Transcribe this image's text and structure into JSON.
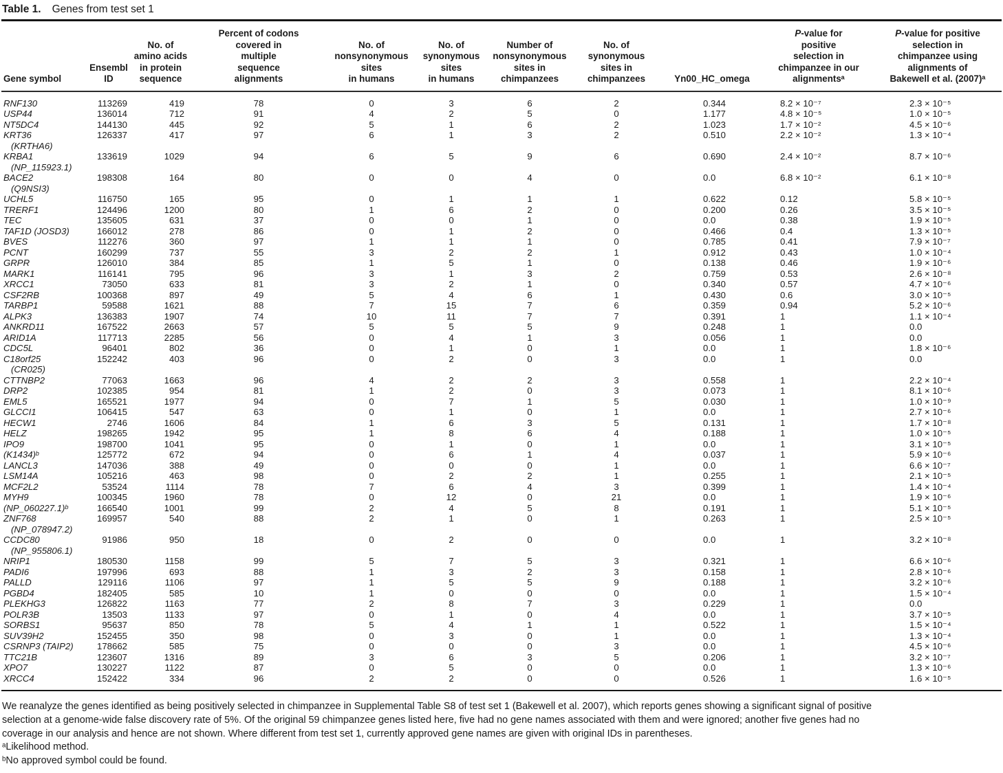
{
  "title": {
    "label": "Table 1.",
    "text": "Genes from test set 1"
  },
  "colors": {
    "background": "#ffffff",
    "text": "#1b1b1b",
    "rule": "#161616"
  },
  "columns": [
    "Gene symbol",
    "Ensembl\nID",
    "No. of\namino acids\nin protein\nsequence",
    "Percent of codons\ncovered in\nmultiple\nsequence\nalignments",
    "No. of\nnonsynonymous\nsites\nin humans",
    "No. of\nsynonymous\nsites\nin humans",
    "Number of\nnonsynonymous\nsites in\nchimpanzees",
    "No. of\nsynonymous\nsites in\nchimpanzees",
    "Yn00_HC_omega",
    "P-value for\npositive\nselection in\nchimpanzee in our\nalignmentsᵃ",
    "P-value for positive\nselection in\nchimpanzee using\nalignments of\nBakewell et al. (2007)ᵃ"
  ],
  "rows": [
    {
      "gene": "RNF130",
      "alt": "",
      "ensembl": "113269",
      "aa": "419",
      "pct": "78",
      "nsh": "0",
      "ssh": "3",
      "nsc": "6",
      "ssc": "2",
      "omega": "0.344",
      "p1": "8.2 × 10⁻⁷",
      "p2": "2.3 × 10⁻⁵"
    },
    {
      "gene": "USP44",
      "alt": "",
      "ensembl": "136014",
      "aa": "712",
      "pct": "91",
      "nsh": "4",
      "ssh": "2",
      "nsc": "5",
      "ssc": "0",
      "omega": "1.177",
      "p1": "4.8 × 10⁻⁵",
      "p2": "1.0 × 10⁻⁵"
    },
    {
      "gene": "NT5DC4",
      "alt": "",
      "ensembl": "144130",
      "aa": "445",
      "pct": "92",
      "nsh": "5",
      "ssh": "1",
      "nsc": "6",
      "ssc": "2",
      "omega": "1.023",
      "p1": "1.7 × 10⁻²",
      "p2": "4.5 × 10⁻⁶"
    },
    {
      "gene": "KRT36",
      "alt": "(KRTHA6)",
      "ensembl": "126337",
      "aa": "417",
      "pct": "97",
      "nsh": "6",
      "ssh": "1",
      "nsc": "3",
      "ssc": "2",
      "omega": "0.510",
      "p1": "2.2 × 10⁻²",
      "p2": "1.3 × 10⁻⁴"
    },
    {
      "gene": "KRBA1",
      "alt": "(NP_115923.1)",
      "ensembl": "133619",
      "aa": "1029",
      "pct": "94",
      "nsh": "6",
      "ssh": "5",
      "nsc": "9",
      "ssc": "6",
      "omega": "0.690",
      "p1": "2.4 × 10⁻²",
      "p2": "8.7 × 10⁻⁶"
    },
    {
      "gene": "BACE2",
      "alt": "(Q9NSI3)",
      "ensembl": "198308",
      "aa": "164",
      "pct": "80",
      "nsh": "0",
      "ssh": "0",
      "nsc": "4",
      "ssc": "0",
      "omega": "0.0",
      "p1": "6.8 × 10⁻²",
      "p2": "6.1 × 10⁻⁸"
    },
    {
      "gene": "UCHL5",
      "alt": "",
      "ensembl": "116750",
      "aa": "165",
      "pct": "95",
      "nsh": "0",
      "ssh": "1",
      "nsc": "1",
      "ssc": "1",
      "omega": "0.622",
      "p1": "0.12",
      "p2": "5.8 × 10⁻⁵"
    },
    {
      "gene": "TRERF1",
      "alt": "",
      "ensembl": "124496",
      "aa": "1200",
      "pct": "80",
      "nsh": "1",
      "ssh": "6",
      "nsc": "2",
      "ssc": "0",
      "omega": "0.200",
      "p1": "0.26",
      "p2": "3.5 × 10⁻⁵"
    },
    {
      "gene": "TEC",
      "alt": "",
      "ensembl": "135605",
      "aa": "631",
      "pct": "37",
      "nsh": "0",
      "ssh": "0",
      "nsc": "1",
      "ssc": "0",
      "omega": "0.0",
      "p1": "0.38",
      "p2": "1.9 × 10⁻⁵"
    },
    {
      "gene": "TAF1D (JOSD3)",
      "alt": "",
      "ensembl": "166012",
      "aa": "278",
      "pct": "86",
      "nsh": "0",
      "ssh": "1",
      "nsc": "2",
      "ssc": "0",
      "omega": "0.466",
      "p1": "0.4",
      "p2": "1.3 × 10⁻⁵"
    },
    {
      "gene": "BVES",
      "alt": "",
      "ensembl": "112276",
      "aa": "360",
      "pct": "97",
      "nsh": "1",
      "ssh": "1",
      "nsc": "1",
      "ssc": "0",
      "omega": "0.785",
      "p1": "0.41",
      "p2": "7.9 × 10⁻⁷"
    },
    {
      "gene": "PCNT",
      "alt": "",
      "ensembl": "160299",
      "aa": "737",
      "pct": "55",
      "nsh": "3",
      "ssh": "2",
      "nsc": "2",
      "ssc": "1",
      "omega": "0.912",
      "p1": "0.43",
      "p2": "1.0 × 10⁻⁴"
    },
    {
      "gene": "GRPR",
      "alt": "",
      "ensembl": "126010",
      "aa": "384",
      "pct": "85",
      "nsh": "1",
      "ssh": "5",
      "nsc": "1",
      "ssc": "0",
      "omega": "0.138",
      "p1": "0.46",
      "p2": "1.9 × 10⁻⁶"
    },
    {
      "gene": "MARK1",
      "alt": "",
      "ensembl": "116141",
      "aa": "795",
      "pct": "96",
      "nsh": "3",
      "ssh": "1",
      "nsc": "3",
      "ssc": "2",
      "omega": "0.759",
      "p1": "0.53",
      "p2": "2.6 × 10⁻⁸"
    },
    {
      "gene": "XRCC1",
      "alt": "",
      "ensembl": "73050",
      "aa": "633",
      "pct": "81",
      "nsh": "3",
      "ssh": "2",
      "nsc": "1",
      "ssc": "0",
      "omega": "0.340",
      "p1": "0.57",
      "p2": "4.7 × 10⁻⁶"
    },
    {
      "gene": "CSF2RB",
      "alt": "",
      "ensembl": "100368",
      "aa": "897",
      "pct": "49",
      "nsh": "5",
      "ssh": "4",
      "nsc": "6",
      "ssc": "1",
      "omega": "0.430",
      "p1": "0.6",
      "p2": "3.0 × 10⁻⁵"
    },
    {
      "gene": "TARBP1",
      "alt": "",
      "ensembl": "59588",
      "aa": "1621",
      "pct": "88",
      "nsh": "7",
      "ssh": "15",
      "nsc": "7",
      "ssc": "6",
      "omega": "0.359",
      "p1": "0.94",
      "p2": "5.2 × 10⁻⁶"
    },
    {
      "gene": "ALPK3",
      "alt": "",
      "ensembl": "136383",
      "aa": "1907",
      "pct": "74",
      "nsh": "10",
      "ssh": "11",
      "nsc": "7",
      "ssc": "7",
      "omega": "0.391",
      "p1": "1",
      "p2": "1.1 × 10⁻⁴"
    },
    {
      "gene": "ANKRD11",
      "alt": "",
      "ensembl": "167522",
      "aa": "2663",
      "pct": "57",
      "nsh": "5",
      "ssh": "5",
      "nsc": "5",
      "ssc": "9",
      "omega": "0.248",
      "p1": "1",
      "p2": "0.0"
    },
    {
      "gene": "ARID1A",
      "alt": "",
      "ensembl": "117713",
      "aa": "2285",
      "pct": "56",
      "nsh": "0",
      "ssh": "4",
      "nsc": "1",
      "ssc": "3",
      "omega": "0.056",
      "p1": "1",
      "p2": "0.0"
    },
    {
      "gene": "CDC5L",
      "alt": "",
      "ensembl": "96401",
      "aa": "802",
      "pct": "36",
      "nsh": "0",
      "ssh": "1",
      "nsc": "0",
      "ssc": "1",
      "omega": "0.0",
      "p1": "1",
      "p2": "1.8 × 10⁻⁶"
    },
    {
      "gene": "C18orf25",
      "alt": "(CR025)",
      "ensembl": "152242",
      "aa": "403",
      "pct": "96",
      "nsh": "0",
      "ssh": "2",
      "nsc": "0",
      "ssc": "3",
      "omega": "0.0",
      "p1": "1",
      "p2": "0.0"
    },
    {
      "gene": "CTTNBP2",
      "alt": "",
      "ensembl": "77063",
      "aa": "1663",
      "pct": "96",
      "nsh": "4",
      "ssh": "2",
      "nsc": "2",
      "ssc": "3",
      "omega": "0.558",
      "p1": "1",
      "p2": "2.2 × 10⁻⁴"
    },
    {
      "gene": "DRP2",
      "alt": "",
      "ensembl": "102385",
      "aa": "954",
      "pct": "81",
      "nsh": "1",
      "ssh": "2",
      "nsc": "0",
      "ssc": "3",
      "omega": "0.073",
      "p1": "1",
      "p2": "8.1 × 10⁻⁶"
    },
    {
      "gene": "EML5",
      "alt": "",
      "ensembl": "165521",
      "aa": "1977",
      "pct": "94",
      "nsh": "0",
      "ssh": "7",
      "nsc": "1",
      "ssc": "5",
      "omega": "0.030",
      "p1": "1",
      "p2": "1.0 × 10⁻⁹"
    },
    {
      "gene": "GLCCI1",
      "alt": "",
      "ensembl": "106415",
      "aa": "547",
      "pct": "63",
      "nsh": "0",
      "ssh": "1",
      "nsc": "0",
      "ssc": "1",
      "omega": "0.0",
      "p1": "1",
      "p2": "2.7 × 10⁻⁶"
    },
    {
      "gene": "HECW1",
      "alt": "",
      "ensembl": "2746",
      "aa": "1606",
      "pct": "84",
      "nsh": "1",
      "ssh": "6",
      "nsc": "3",
      "ssc": "5",
      "omega": "0.131",
      "p1": "1",
      "p2": "1.7 × 10⁻⁸"
    },
    {
      "gene": "HELZ",
      "alt": "",
      "ensembl": "198265",
      "aa": "1942",
      "pct": "95",
      "nsh": "1",
      "ssh": "8",
      "nsc": "6",
      "ssc": "4",
      "omega": "0.188",
      "p1": "1",
      "p2": "1.0 × 10⁻⁵"
    },
    {
      "gene": "IPO9",
      "alt": "",
      "ensembl": "198700",
      "aa": "1041",
      "pct": "95",
      "nsh": "0",
      "ssh": "1",
      "nsc": "0",
      "ssc": "1",
      "omega": "0.0",
      "p1": "1",
      "p2": "3.1 × 10⁻⁵"
    },
    {
      "gene": "(K1434)ᵇ",
      "alt": "",
      "ensembl": "125772",
      "aa": "672",
      "pct": "94",
      "nsh": "0",
      "ssh": "6",
      "nsc": "1",
      "ssc": "4",
      "omega": "0.037",
      "p1": "1",
      "p2": "5.9 × 10⁻⁶"
    },
    {
      "gene": "LANCL3",
      "alt": "",
      "ensembl": "147036",
      "aa": "388",
      "pct": "49",
      "nsh": "0",
      "ssh": "0",
      "nsc": "0",
      "ssc": "1",
      "omega": "0.0",
      "p1": "1",
      "p2": "6.6 × 10⁻⁷"
    },
    {
      "gene": "LSM14A",
      "alt": "",
      "ensembl": "105216",
      "aa": "463",
      "pct": "98",
      "nsh": "0",
      "ssh": "2",
      "nsc": "2",
      "ssc": "1",
      "omega": "0.255",
      "p1": "1",
      "p2": "2.1 × 10⁻⁵"
    },
    {
      "gene": "MCF2L2",
      "alt": "",
      "ensembl": "53524",
      "aa": "1114",
      "pct": "78",
      "nsh": "7",
      "ssh": "6",
      "nsc": "4",
      "ssc": "3",
      "omega": "0.399",
      "p1": "1",
      "p2": "1.4 × 10⁻⁴"
    },
    {
      "gene": "MYH9",
      "alt": "",
      "ensembl": "100345",
      "aa": "1960",
      "pct": "78",
      "nsh": "0",
      "ssh": "12",
      "nsc": "0",
      "ssc": "21",
      "omega": "0.0",
      "p1": "1",
      "p2": "1.9 × 10⁻⁶"
    },
    {
      "gene": "(NP_060227.1)ᵇ",
      "alt": "",
      "ensembl": "166540",
      "aa": "1001",
      "pct": "99",
      "nsh": "2",
      "ssh": "4",
      "nsc": "5",
      "ssc": "8",
      "omega": "0.191",
      "p1": "1",
      "p2": "5.1 × 10⁻⁵"
    },
    {
      "gene": "ZNF768",
      "alt": "(NP_078947.2)",
      "ensembl": "169957",
      "aa": "540",
      "pct": "88",
      "nsh": "2",
      "ssh": "1",
      "nsc": "0",
      "ssc": "1",
      "omega": "0.263",
      "p1": "1",
      "p2": "2.5 × 10⁻⁵"
    },
    {
      "gene": "CCDC80",
      "alt": "(NP_955806.1)",
      "ensembl": "91986",
      "aa": "950",
      "pct": "18",
      "nsh": "0",
      "ssh": "2",
      "nsc": "0",
      "ssc": "0",
      "omega": "0.0",
      "p1": "1",
      "p2": "3.2 × 10⁻⁸"
    },
    {
      "gene": "NRIP1",
      "alt": "",
      "ensembl": "180530",
      "aa": "1158",
      "pct": "99",
      "nsh": "5",
      "ssh": "7",
      "nsc": "5",
      "ssc": "3",
      "omega": "0.321",
      "p1": "1",
      "p2": "6.6 × 10⁻⁶"
    },
    {
      "gene": "PADI6",
      "alt": "",
      "ensembl": "197996",
      "aa": "693",
      "pct": "88",
      "nsh": "1",
      "ssh": "3",
      "nsc": "2",
      "ssc": "3",
      "omega": "0.158",
      "p1": "1",
      "p2": "2.8 × 10⁻⁶"
    },
    {
      "gene": "PALLD",
      "alt": "",
      "ensembl": "129116",
      "aa": "1106",
      "pct": "97",
      "nsh": "1",
      "ssh": "5",
      "nsc": "5",
      "ssc": "9",
      "omega": "0.188",
      "p1": "1",
      "p2": "3.2 × 10⁻⁶"
    },
    {
      "gene": "PGBD4",
      "alt": "",
      "ensembl": "182405",
      "aa": "585",
      "pct": "10",
      "nsh": "1",
      "ssh": "0",
      "nsc": "0",
      "ssc": "0",
      "omega": "0.0",
      "p1": "1",
      "p2": "1.5 × 10⁻⁴"
    },
    {
      "gene": "PLEKHG3",
      "alt": "",
      "ensembl": "126822",
      "aa": "1163",
      "pct": "77",
      "nsh": "2",
      "ssh": "8",
      "nsc": "7",
      "ssc": "3",
      "omega": "0.229",
      "p1": "1",
      "p2": "0.0"
    },
    {
      "gene": "POLR3B",
      "alt": "",
      "ensembl": "13503",
      "aa": "1133",
      "pct": "97",
      "nsh": "0",
      "ssh": "1",
      "nsc": "0",
      "ssc": "4",
      "omega": "0.0",
      "p1": "1",
      "p2": "3.7 × 10⁻⁵"
    },
    {
      "gene": "SORBS1",
      "alt": "",
      "ensembl": "95637",
      "aa": "850",
      "pct": "78",
      "nsh": "5",
      "ssh": "4",
      "nsc": "1",
      "ssc": "1",
      "omega": "0.522",
      "p1": "1",
      "p2": "1.5 × 10⁻⁴"
    },
    {
      "gene": "SUV39H2",
      "alt": "",
      "ensembl": "152455",
      "aa": "350",
      "pct": "98",
      "nsh": "0",
      "ssh": "3",
      "nsc": "0",
      "ssc": "1",
      "omega": "0.0",
      "p1": "1",
      "p2": "1.3 × 10⁻⁴"
    },
    {
      "gene": "CSRNP3 (TAIP2)",
      "alt": "",
      "ensembl": "178662",
      "aa": "585",
      "pct": "75",
      "nsh": "0",
      "ssh": "0",
      "nsc": "0",
      "ssc": "3",
      "omega": "0.0",
      "p1": "1",
      "p2": "4.5 × 10⁻⁶"
    },
    {
      "gene": "TTC21B",
      "alt": "",
      "ensembl": "123607",
      "aa": "1316",
      "pct": "89",
      "nsh": "3",
      "ssh": "6",
      "nsc": "3",
      "ssc": "5",
      "omega": "0.206",
      "p1": "1",
      "p2": "3.2 × 10⁻⁷"
    },
    {
      "gene": "XPO7",
      "alt": "",
      "ensembl": "130227",
      "aa": "1122",
      "pct": "87",
      "nsh": "0",
      "ssh": "5",
      "nsc": "0",
      "ssc": "0",
      "omega": "0.0",
      "p1": "1",
      "p2": "1.3 × 10⁻⁶"
    },
    {
      "gene": "XRCC4",
      "alt": "",
      "ensembl": "152422",
      "aa": "334",
      "pct": "96",
      "nsh": "2",
      "ssh": "2",
      "nsc": "0",
      "ssc": "0",
      "omega": "0.526",
      "p1": "1",
      "p2": "1.6 × 10⁻⁵"
    }
  ],
  "footer": {
    "note": "We reanalyze the genes identified as being positively selected in chimpanzee in Supplemental Table S8 of test set 1 (Bakewell et al. 2007), which reports genes showing a significant signal of positive\nselection at a genome-wide false discovery rate of 5%. Of the original 59 chimpanzee genes listed here, five had no gene names associated with them and were ignored; another five genes had no\ncoverage in our analysis and hence are not shown. Where different from test set 1, currently approved gene names are given with original IDs in parentheses.",
    "footnote_a": "ᵃLikelihood method.",
    "footnote_b": "ᵇNo approved symbol could be found."
  }
}
